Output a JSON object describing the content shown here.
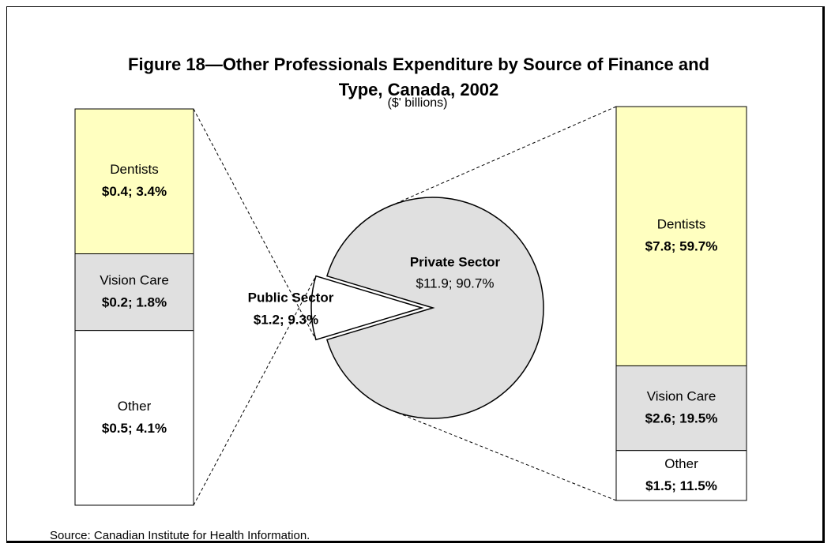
{
  "chart_data": {
    "type": "pie",
    "title": "Figure 18—Other Professionals Expenditure by Source of Finance and Type, Canada, 2002",
    "subtitle": "($' billions)",
    "note": "Source: Canadian Institute for Health Information.",
    "categories": [
      "Public Sector",
      "Private Sector"
    ],
    "values": [
      9.3,
      90.7
    ],
    "value_labels": [
      "$1.2;  9.3%",
      "$11.9;  90.7%"
    ],
    "colors": [
      "#ffffff",
      "#e0e0e0"
    ],
    "breakdowns": [
      {
        "categories": [
          "Dentists",
          "Vision Care",
          "Other"
        ],
        "values": [
          3.4,
          1.8,
          4.1
        ],
        "value_labels": [
          "$0.4; 3.4%",
          "$0.2; 1.8%",
          "$0.5; 4.1%"
        ],
        "colors": [
          "#ffffc0",
          "#e0e0e0",
          "#ffffff"
        ]
      },
      {
        "categories": [
          "Dentists",
          "Vision Care",
          "Other"
        ],
        "values": [
          59.7,
          19.5,
          11.5
        ],
        "value_labels": [
          "$7.8; 59.7%",
          "$2.6; 19.5%",
          "$1.5; 11.5%"
        ],
        "colors": [
          "#ffffc0",
          "#e0e0e0",
          "#ffffff"
        ]
      }
    ]
  }
}
